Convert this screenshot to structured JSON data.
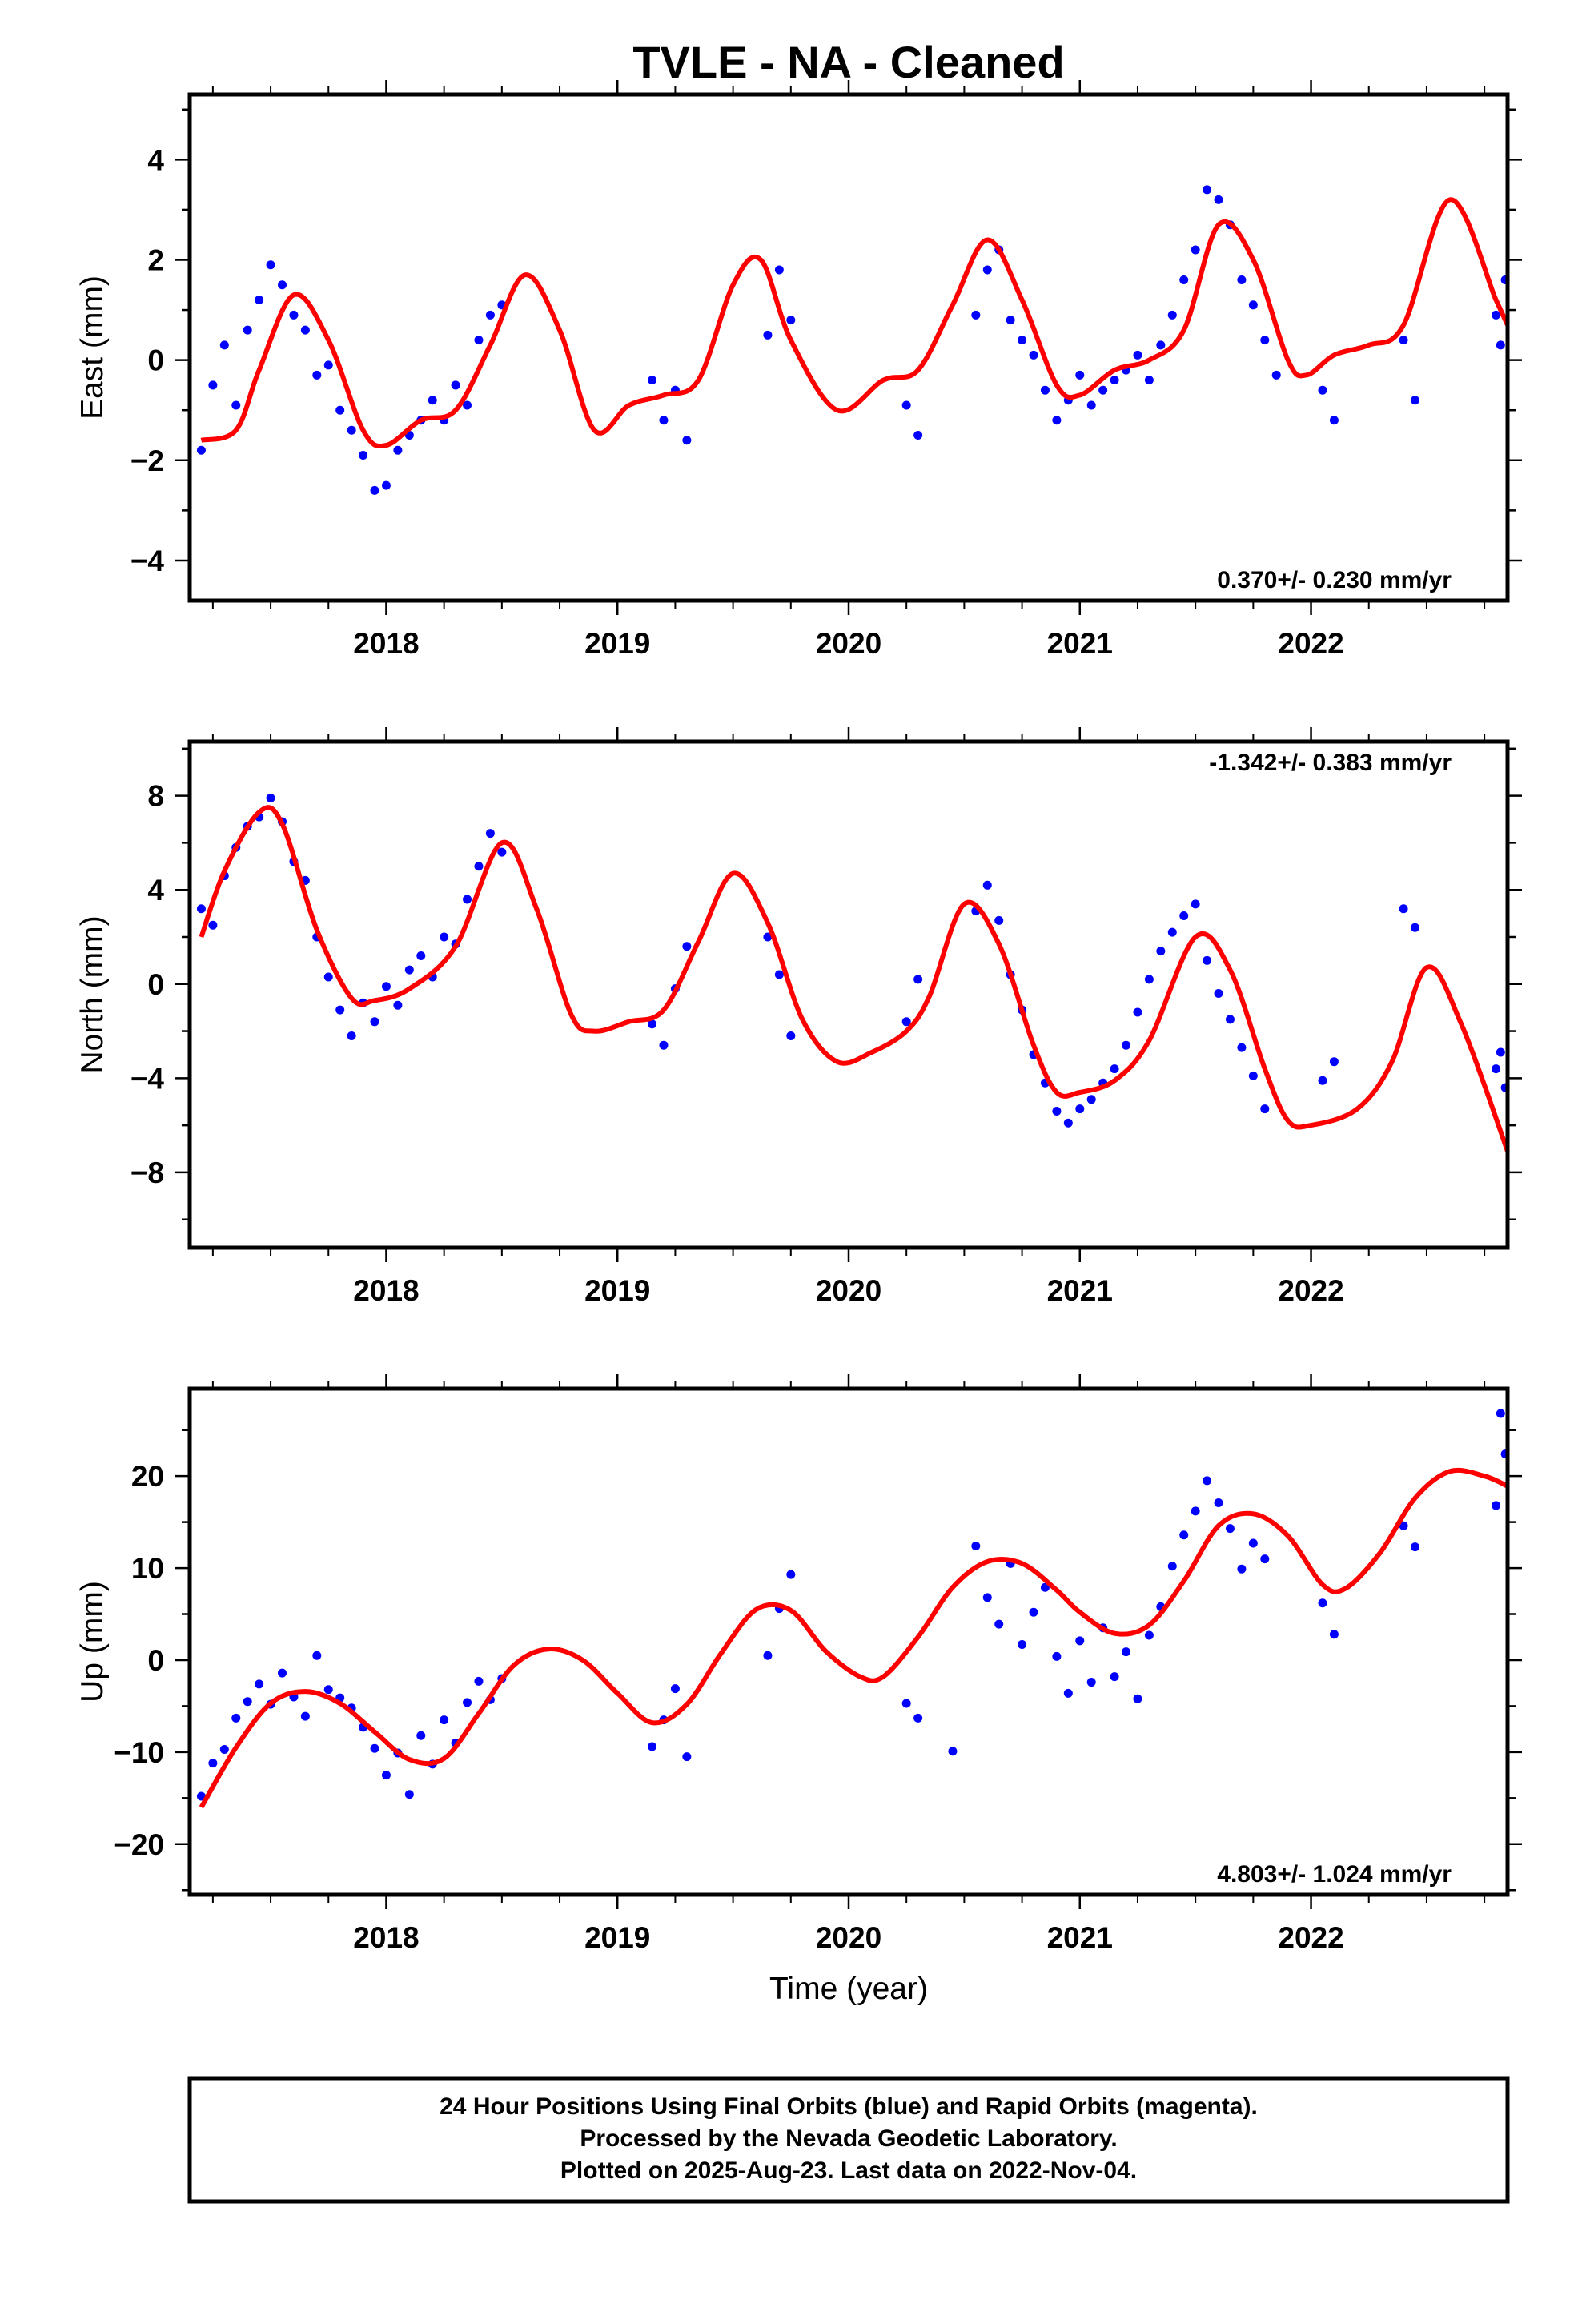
{
  "title": "TVLE  - NA - Cleaned",
  "colors": {
    "points": "#0000ff",
    "model": "#ff0000",
    "frame": "#000000"
  },
  "chart_data": [
    {
      "type": "scatter",
      "panel": "east",
      "ylabel": "East (mm)",
      "xlabel": "",
      "xlim": [
        2017.15,
        2022.85
      ],
      "ylim": [
        -4.8,
        5.3
      ],
      "x_ticks": [
        2018,
        2019,
        2020,
        2021,
        2022
      ],
      "x_tick_labels": [
        "2018",
        "2019",
        "2020",
        "2021",
        "2022"
      ],
      "y_ticks": [
        -4,
        -2,
        0,
        2,
        4
      ],
      "y_tick_labels": [
        "−4",
        "−2",
        "0",
        "2",
        "4"
      ],
      "rate": "0.370+/- 0.230 mm/yr",
      "rate_position": "bottom-right",
      "series": [
        {
          "kind": "points",
          "x": [
            2017.2,
            2017.25,
            2017.3,
            2017.35,
            2017.4,
            2017.45,
            2017.5,
            2017.55,
            2017.6,
            2017.65,
            2017.7,
            2017.75,
            2017.8,
            2017.85,
            2017.9,
            2017.95,
            2018.0,
            2018.05,
            2018.1,
            2018.15,
            2018.2,
            2018.25,
            2018.3,
            2018.35,
            2018.4,
            2018.45,
            2018.5,
            2019.15,
            2019.2,
            2019.25,
            2019.3,
            2019.65,
            2019.7,
            2019.75,
            2020.25,
            2020.3,
            2020.55,
            2020.6,
            2020.65,
            2020.7,
            2020.75,
            2020.8,
            2020.85,
            2020.9,
            2020.95,
            2021.0,
            2021.05,
            2021.1,
            2021.15,
            2021.2,
            2021.25,
            2021.3,
            2021.35,
            2021.4,
            2021.45,
            2021.5,
            2021.55,
            2021.6,
            2021.65,
            2021.7,
            2021.75,
            2021.8,
            2021.85,
            2022.05,
            2022.1,
            2022.4,
            2022.45,
            2022.8,
            2022.82,
            2022.84
          ],
          "y": [
            -1.8,
            -0.5,
            0.3,
            -0.9,
            0.6,
            1.2,
            1.9,
            1.5,
            0.9,
            0.6,
            -0.3,
            -0.1,
            -1.0,
            -1.4,
            -1.9,
            -2.6,
            -2.5,
            -1.8,
            -1.5,
            -1.2,
            -0.8,
            -1.2,
            -0.5,
            -0.9,
            0.4,
            0.9,
            1.1,
            -0.4,
            -1.2,
            -0.6,
            -1.6,
            0.5,
            1.8,
            0.8,
            -0.9,
            -1.5,
            0.9,
            1.8,
            2.2,
            0.8,
            0.4,
            0.1,
            -0.6,
            -1.2,
            -0.8,
            -0.3,
            -0.9,
            -0.6,
            -0.4,
            -0.2,
            0.1,
            -0.4,
            0.3,
            0.9,
            1.6,
            2.2,
            3.4,
            3.2,
            2.7,
            1.6,
            1.1,
            0.4,
            -0.3,
            -0.6,
            -1.2,
            0.4,
            -0.8,
            0.9,
            0.3,
            1.6
          ]
        },
        {
          "kind": "model",
          "x": [
            2017.2,
            2017.35,
            2017.45,
            2017.6,
            2017.75,
            2017.9,
            2018.0,
            2018.15,
            2018.3,
            2018.45,
            2018.6,
            2018.75,
            2018.9,
            2019.05,
            2019.2,
            2019.35,
            2019.5,
            2019.62,
            2019.75,
            2019.95,
            2020.15,
            2020.3,
            2020.45,
            2020.6,
            2020.75,
            2020.9,
            2021.0,
            2021.15,
            2021.3,
            2021.45,
            2021.6,
            2021.75,
            2021.9,
            2021.98,
            2022.1,
            2022.25,
            2022.4,
            2022.6,
            2022.8,
            2022.85
          ],
          "y": [
            -1.6,
            -1.4,
            -0.2,
            1.3,
            0.4,
            -1.4,
            -1.7,
            -1.2,
            -1.0,
            0.3,
            1.7,
            0.6,
            -1.4,
            -0.9,
            -0.7,
            -0.4,
            1.5,
            2.0,
            0.4,
            -1.0,
            -0.4,
            -0.2,
            1.1,
            2.4,
            1.2,
            -0.5,
            -0.7,
            -0.2,
            0.0,
            0.6,
            2.7,
            2.0,
            0.0,
            -0.3,
            0.1,
            0.3,
            0.7,
            3.2,
            1.2,
            0.7
          ]
        }
      ]
    },
    {
      "type": "scatter",
      "panel": "north",
      "ylabel": "North (mm)",
      "xlabel": "",
      "xlim": [
        2017.15,
        2022.85
      ],
      "ylim": [
        -11.2,
        10.3
      ],
      "x_ticks": [
        2018,
        2019,
        2020,
        2021,
        2022
      ],
      "x_tick_labels": [
        "2018",
        "2019",
        "2020",
        "2021",
        "2022"
      ],
      "y_ticks": [
        -8,
        -4,
        0,
        4,
        8
      ],
      "y_tick_labels": [
        "−8",
        "−4",
        "0",
        "4",
        "8"
      ],
      "rate": "-1.342+/- 0.383 mm/yr",
      "rate_position": "top-right",
      "series": [
        {
          "kind": "points",
          "x": [
            2017.2,
            2017.25,
            2017.3,
            2017.35,
            2017.4,
            2017.45,
            2017.5,
            2017.55,
            2017.6,
            2017.65,
            2017.7,
            2017.75,
            2017.8,
            2017.85,
            2017.9,
            2017.95,
            2018.0,
            2018.05,
            2018.1,
            2018.15,
            2018.2,
            2018.25,
            2018.3,
            2018.35,
            2018.4,
            2018.45,
            2018.5,
            2019.15,
            2019.2,
            2019.25,
            2019.3,
            2019.65,
            2019.7,
            2019.75,
            2020.25,
            2020.3,
            2020.55,
            2020.6,
            2020.65,
            2020.7,
            2020.75,
            2020.8,
            2020.85,
            2020.9,
            2020.95,
            2021.0,
            2021.05,
            2021.1,
            2021.15,
            2021.2,
            2021.25,
            2021.3,
            2021.35,
            2021.4,
            2021.45,
            2021.5,
            2021.55,
            2021.6,
            2021.65,
            2021.7,
            2021.75,
            2021.8,
            2022.05,
            2022.1,
            2022.4,
            2022.45,
            2022.8,
            2022.82,
            2022.84
          ],
          "y": [
            3.2,
            2.5,
            4.6,
            5.8,
            6.7,
            7.1,
            7.9,
            6.9,
            5.2,
            4.4,
            2.0,
            0.3,
            -1.1,
            -2.2,
            -0.8,
            -1.6,
            -0.1,
            -0.9,
            0.6,
            1.2,
            0.3,
            2.0,
            1.7,
            3.6,
            5.0,
            6.4,
            5.6,
            -1.7,
            -2.6,
            -0.2,
            1.6,
            2.0,
            0.4,
            -2.2,
            -1.6,
            0.2,
            3.1,
            4.2,
            2.7,
            0.4,
            -1.1,
            -3.0,
            -4.2,
            -5.4,
            -5.9,
            -5.3,
            -4.9,
            -4.2,
            -3.6,
            -2.6,
            -1.2,
            0.2,
            1.4,
            2.2,
            2.9,
            3.4,
            1.0,
            -0.4,
            -1.5,
            -2.7,
            -3.9,
            -5.3,
            -4.1,
            -3.3,
            3.2,
            2.4,
            -3.6,
            -2.9,
            -4.4
          ]
        },
        {
          "kind": "model",
          "x": [
            2017.2,
            2017.3,
            2017.45,
            2017.55,
            2017.7,
            2017.85,
            2017.95,
            2018.1,
            2018.3,
            2018.5,
            2018.65,
            2018.8,
            2018.9,
            2019.05,
            2019.2,
            2019.35,
            2019.5,
            2019.65,
            2019.8,
            2019.95,
            2020.1,
            2020.25,
            2020.35,
            2020.5,
            2020.65,
            2020.8,
            2020.9,
            2021.0,
            2021.15,
            2021.3,
            2021.5,
            2021.65,
            2021.8,
            2021.9,
            2022.0,
            2022.2,
            2022.35,
            2022.5,
            2022.65,
            2022.85
          ],
          "y": [
            2.0,
            4.8,
            7.3,
            6.8,
            2.3,
            -0.6,
            -0.7,
            -0.2,
            1.6,
            6.0,
            3.2,
            -1.3,
            -2.0,
            -1.6,
            -1.1,
            1.8,
            4.7,
            2.6,
            -1.5,
            -3.3,
            -2.9,
            -2.0,
            -0.5,
            3.4,
            1.7,
            -2.6,
            -4.6,
            -4.6,
            -4.1,
            -2.4,
            2.0,
            0.6,
            -3.6,
            -5.8,
            -6.0,
            -5.3,
            -3.3,
            0.7,
            -1.7,
            -7.1
          ]
        }
      ]
    },
    {
      "type": "scatter",
      "panel": "up",
      "ylabel": "Up (mm)",
      "xlabel": "Time (year)",
      "xlim": [
        2017.15,
        2022.85
      ],
      "ylim": [
        -25.5,
        29.5
      ],
      "x_ticks": [
        2018,
        2019,
        2020,
        2021,
        2022
      ],
      "x_tick_labels": [
        "2018",
        "2019",
        "2020",
        "2021",
        "2022"
      ],
      "y_ticks": [
        -20,
        -10,
        0,
        10,
        20
      ],
      "y_tick_labels": [
        "−20",
        "−10",
        "0",
        "10",
        "20"
      ],
      "rate": "4.803+/- 1.024 mm/yr",
      "rate_position": "bottom-right",
      "series": [
        {
          "kind": "points",
          "x": [
            2017.2,
            2017.25,
            2017.3,
            2017.35,
            2017.4,
            2017.45,
            2017.5,
            2017.55,
            2017.6,
            2017.65,
            2017.7,
            2017.75,
            2017.8,
            2017.85,
            2017.9,
            2017.95,
            2018.0,
            2018.05,
            2018.1,
            2018.15,
            2018.2,
            2018.25,
            2018.3,
            2018.35,
            2018.4,
            2018.45,
            2018.5,
            2019.15,
            2019.2,
            2019.25,
            2019.3,
            2019.65,
            2019.7,
            2019.75,
            2020.25,
            2020.3,
            2020.45,
            2020.55,
            2020.6,
            2020.65,
            2020.7,
            2020.75,
            2020.8,
            2020.85,
            2020.9,
            2020.95,
            2021.0,
            2021.05,
            2021.1,
            2021.15,
            2021.2,
            2021.25,
            2021.3,
            2021.35,
            2021.4,
            2021.45,
            2021.5,
            2021.55,
            2021.6,
            2021.65,
            2021.7,
            2021.75,
            2021.8,
            2022.05,
            2022.1,
            2022.4,
            2022.45,
            2022.8,
            2022.82,
            2022.84
          ],
          "y": [
            -14.8,
            -11.2,
            -9.7,
            -6.3,
            -4.5,
            -2.6,
            -4.8,
            -1.4,
            -4.0,
            -6.1,
            0.5,
            -3.2,
            -4.1,
            -5.2,
            -7.3,
            -9.6,
            -12.5,
            -10.1,
            -14.6,
            -8.2,
            -11.3,
            -6.5,
            -9.0,
            -4.6,
            -2.3,
            -4.3,
            -2.0,
            -9.4,
            -6.5,
            -3.1,
            -10.5,
            0.5,
            5.6,
            9.3,
            -4.7,
            -6.3,
            -9.9,
            12.4,
            6.8,
            3.9,
            10.5,
            1.7,
            5.2,
            7.9,
            0.4,
            -3.6,
            2.1,
            -2.4,
            3.5,
            -1.8,
            0.9,
            -4.2,
            2.7,
            5.8,
            10.2,
            13.6,
            16.2,
            19.5,
            17.1,
            14.3,
            9.9,
            12.7,
            11.0,
            6.2,
            2.8,
            14.6,
            12.3,
            16.8,
            26.8,
            22.4
          ]
        },
        {
          "kind": "model",
          "x": [
            2017.2,
            2017.35,
            2017.5,
            2017.65,
            2017.8,
            2017.95,
            2018.1,
            2018.25,
            2018.4,
            2018.55,
            2018.7,
            2018.85,
            2019.0,
            2019.15,
            2019.3,
            2019.45,
            2019.6,
            2019.75,
            2019.9,
            2020.05,
            2020.15,
            2020.3,
            2020.45,
            2020.6,
            2020.75,
            2020.9,
            2021.0,
            2021.15,
            2021.3,
            2021.45,
            2021.6,
            2021.75,
            2021.9,
            2022.05,
            2022.15,
            2022.3,
            2022.45,
            2022.6,
            2022.75,
            2022.85
          ],
          "y": [
            -16.0,
            -9.5,
            -4.7,
            -3.4,
            -4.7,
            -7.8,
            -10.8,
            -10.7,
            -5.8,
            -0.6,
            1.2,
            0.0,
            -3.6,
            -6.8,
            -4.8,
            0.8,
            5.5,
            5.4,
            1.0,
            -1.8,
            -1.8,
            2.5,
            7.9,
            10.7,
            10.5,
            7.6,
            5.2,
            2.9,
            3.8,
            8.6,
            14.6,
            15.9,
            13.5,
            8.2,
            7.8,
            11.7,
            17.6,
            20.5,
            20.0,
            18.9
          ]
        }
      ]
    }
  ],
  "footer": {
    "line1": "24 Hour Positions Using Final Orbits (blue) and Rapid Orbits (magenta).",
    "line2": "Processed by the Nevada Geodetic Laboratory.",
    "line3": "Plotted on 2025-Aug-23. Last data on 2022-Nov-04."
  }
}
